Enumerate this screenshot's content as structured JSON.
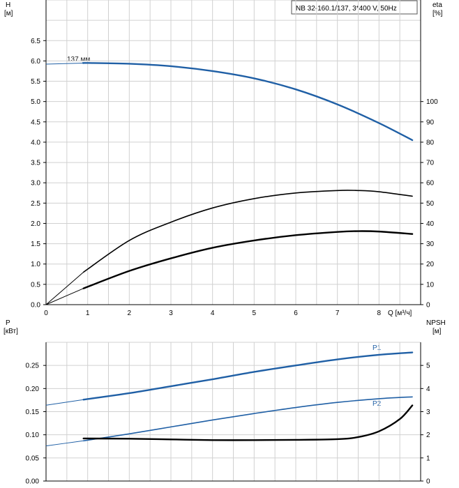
{
  "chart_data": [
    {
      "type": "line",
      "panel": "head-efficiency",
      "title": "NB 32-160.1/137, 3*400 V, 50Hz",
      "x_axis": {
        "label": "Q [м³/ч]",
        "min": 0,
        "max": 9,
        "ticks": [
          0,
          1,
          2,
          3,
          4,
          5,
          6,
          7,
          8
        ]
      },
      "y_left": {
        "label_top": "H",
        "label_unit": "[м]",
        "min": 0,
        "max": 7.5,
        "ticks": [
          "0.0",
          "0.5",
          "1.0",
          "1.5",
          "2.0",
          "2.5",
          "3.0",
          "3.5",
          "4.0",
          "4.5",
          "5.0",
          "5.5",
          "6.0",
          "6.5"
        ]
      },
      "y_right": {
        "label_top": "eta",
        "label_unit": "[%]",
        "min": 0,
        "max": 150,
        "ticks": [
          "0",
          "10",
          "20",
          "30",
          "40",
          "50",
          "60",
          "70",
          "80",
          "90",
          "100"
        ]
      },
      "grid": true,
      "series": [
        {
          "name": "137 мм",
          "axis": "left",
          "thin_x": [
            0,
            0.9
          ],
          "thick_x": [
            0.9,
            8.8
          ],
          "curve": [
            [
              0,
              5.92
            ],
            [
              1,
              5.95
            ],
            [
              2,
              5.93
            ],
            [
              3,
              5.87
            ],
            [
              4,
              5.75
            ],
            [
              5,
              5.57
            ],
            [
              6,
              5.3
            ],
            [
              7,
              4.93
            ],
            [
              8,
              4.47
            ],
            [
              8.8,
              4.05
            ]
          ]
        },
        {
          "name": "",
          "axis": "left",
          "thin_x": [
            0,
            0.9
          ],
          "thick_x": [
            0.9,
            8.8
          ],
          "curve": [
            [
              0,
              0
            ],
            [
              0.9,
              0.8
            ],
            [
              2,
              1.58
            ],
            [
              3,
              2.03
            ],
            [
              4,
              2.38
            ],
            [
              5,
              2.61
            ],
            [
              6,
              2.75
            ],
            [
              7,
              2.81
            ],
            [
              7.5,
              2.81
            ],
            [
              8,
              2.78
            ],
            [
              8.8,
              2.67
            ]
          ]
        },
        {
          "name": "",
          "axis": "left",
          "thin_x": [
            0,
            0.9
          ],
          "thick_x": [
            0.9,
            8.8
          ],
          "curve": [
            [
              0,
              0
            ],
            [
              0.9,
              0.4
            ],
            [
              2,
              0.83
            ],
            [
              3,
              1.14
            ],
            [
              4,
              1.4
            ],
            [
              5,
              1.58
            ],
            [
              6,
              1.71
            ],
            [
              7,
              1.79
            ],
            [
              7.5,
              1.81
            ],
            [
              8,
              1.8
            ],
            [
              8.8,
              1.74
            ]
          ]
        }
      ]
    },
    {
      "type": "line",
      "panel": "power-npsh",
      "x_axis": {
        "min": 0,
        "max": 9
      },
      "y_left": {
        "label_top": "P",
        "label_unit": "[кВт]",
        "min": 0,
        "max": 0.3,
        "ticks": [
          "0.00",
          "0.05",
          "0.10",
          "0.15",
          "0.20",
          "0.25"
        ]
      },
      "y_right": {
        "label_top": "NPSH",
        "label_unit": "[м]",
        "min": 0,
        "max": 6,
        "ticks": [
          "0",
          "1",
          "2",
          "3",
          "4",
          "5"
        ]
      },
      "grid": true,
      "series": [
        {
          "name": "P1",
          "axis": "left",
          "thin_x": [
            0,
            0.9
          ],
          "thick_x": [
            0.9,
            8.8
          ],
          "curve": [
            [
              0,
              0.164
            ],
            [
              0.9,
              0.176
            ],
            [
              2,
              0.19
            ],
            [
              3,
              0.205
            ],
            [
              4,
              0.22
            ],
            [
              5,
              0.236
            ],
            [
              6,
              0.25
            ],
            [
              7,
              0.263
            ],
            [
              8,
              0.273
            ],
            [
              8.8,
              0.278
            ]
          ]
        },
        {
          "name": "P2",
          "axis": "left",
          "thin_x": [
            0,
            0.9
          ],
          "thick_x": [
            0.9,
            8.8
          ],
          "curve": [
            [
              0,
              0.076
            ],
            [
              0.9,
              0.087
            ],
            [
              2,
              0.102
            ],
            [
              3,
              0.117
            ],
            [
              4,
              0.132
            ],
            [
              5,
              0.146
            ],
            [
              6,
              0.159
            ],
            [
              7,
              0.17
            ],
            [
              8,
              0.178
            ],
            [
              8.8,
              0.182
            ]
          ]
        },
        {
          "name": "",
          "axis": "right",
          "thick_x": [
            0.9,
            8.8
          ],
          "curve": [
            [
              0.9,
              1.84
            ],
            [
              2,
              1.83
            ],
            [
              3,
              1.8
            ],
            [
              4,
              1.77
            ],
            [
              5,
              1.77
            ],
            [
              6,
              1.78
            ],
            [
              7,
              1.81
            ],
            [
              7.5,
              1.9
            ],
            [
              8,
              2.15
            ],
            [
              8.5,
              2.68
            ],
            [
              8.8,
              3.27
            ]
          ]
        }
      ]
    }
  ],
  "colors": {
    "blue": "#1f5fa5",
    "black": "#000000",
    "grid": "#d0d0d0",
    "axis": "#000000"
  }
}
